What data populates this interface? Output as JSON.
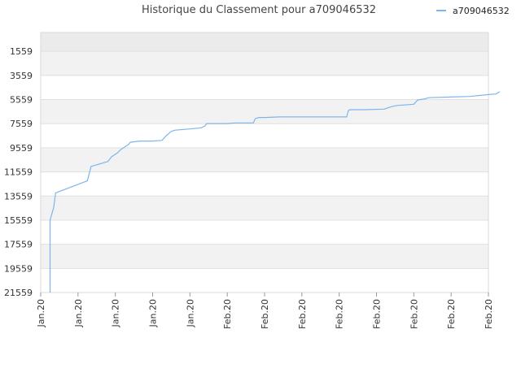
{
  "chart_data": {
    "type": "line",
    "title": "Historique du Classement pour a709046532",
    "xlabel": "",
    "ylabel": "",
    "y_inverted": true,
    "ylim": [
      21559,
      0
    ],
    "y_ticks": [
      "1559",
      "3559",
      "5559",
      "7559",
      "9559",
      "11559",
      "13559",
      "15559",
      "17559",
      "19559",
      "21559"
    ],
    "x_ticks": [
      "Jan.20",
      "Jan.20",
      "Jan.20",
      "Jan.20",
      "Jan.20",
      "Feb.20",
      "Feb.20",
      "Feb.20",
      "Feb.20",
      "Feb.20",
      "Feb.20",
      "Feb.20",
      "Feb.20"
    ],
    "grid": true,
    "legend_position": "top-right",
    "series": [
      {
        "name": "a709046532",
        "color": "#7cb5ec",
        "points": [
          [
            0.25,
            21559
          ],
          [
            0.25,
            15559
          ],
          [
            0.35,
            14500
          ],
          [
            0.4,
            13300
          ],
          [
            1.25,
            12300
          ],
          [
            1.3,
            11700
          ],
          [
            1.35,
            11100
          ],
          [
            1.8,
            10700
          ],
          [
            1.9,
            10300
          ],
          [
            2.05,
            10000
          ],
          [
            2.15,
            9700
          ],
          [
            2.35,
            9300
          ],
          [
            2.4,
            9100
          ],
          [
            2.65,
            9000
          ],
          [
            3.0,
            9000
          ],
          [
            3.25,
            8950
          ],
          [
            3.35,
            8600
          ],
          [
            3.5,
            8200
          ],
          [
            3.6,
            8100
          ],
          [
            4.0,
            8000
          ],
          [
            4.3,
            7900
          ],
          [
            4.4,
            7750
          ],
          [
            4.45,
            7550
          ],
          [
            5.0,
            7550
          ],
          [
            5.2,
            7500
          ],
          [
            5.7,
            7500
          ],
          [
            5.75,
            7150
          ],
          [
            5.85,
            7050
          ],
          [
            6.0,
            7050
          ],
          [
            6.4,
            7000
          ],
          [
            7.9,
            7000
          ],
          [
            8.0,
            7000
          ],
          [
            8.2,
            7000
          ],
          [
            8.25,
            6450
          ],
          [
            8.3,
            6400
          ],
          [
            8.7,
            6400
          ],
          [
            9.2,
            6350
          ],
          [
            9.4,
            6150
          ],
          [
            9.55,
            6050
          ],
          [
            10.0,
            5950
          ],
          [
            10.1,
            5600
          ],
          [
            10.3,
            5500
          ],
          [
            10.4,
            5400
          ],
          [
            11.0,
            5350
          ],
          [
            11.5,
            5300
          ],
          [
            12.0,
            5150
          ],
          [
            12.2,
            5100
          ],
          [
            12.3,
            4900
          ]
        ]
      }
    ]
  }
}
